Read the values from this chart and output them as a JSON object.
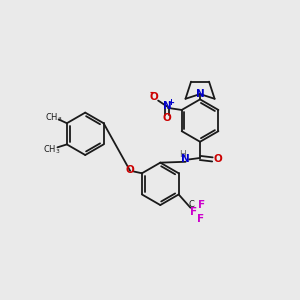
{
  "bg_color": "#eaeaea",
  "bond_color": "#1a1a1a",
  "nitrogen_color": "#0000cc",
  "oxygen_color": "#cc0000",
  "fluorine_color": "#cc00cc",
  "figsize": [
    3.0,
    3.0
  ],
  "dpi": 100,
  "xlim": [
    0,
    10
  ],
  "ylim": [
    0,
    10
  ]
}
